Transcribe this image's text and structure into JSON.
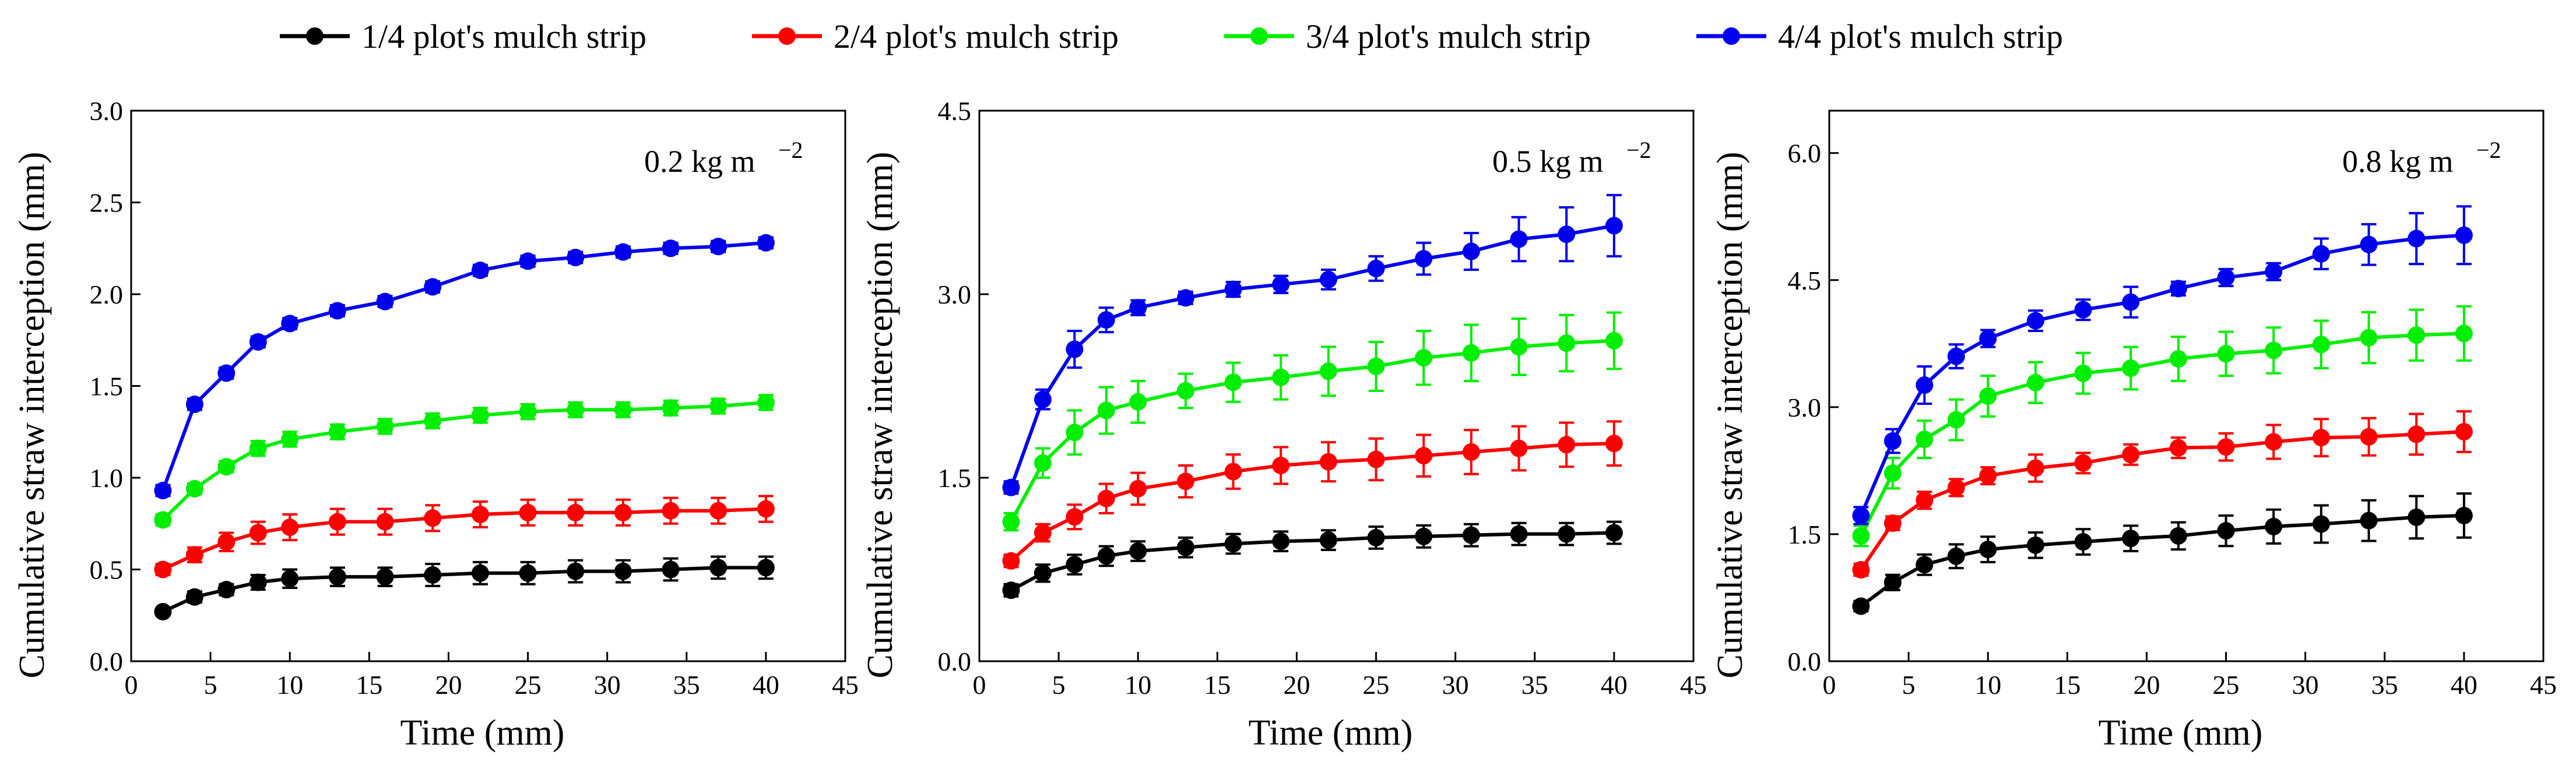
{
  "chart_data": {
    "type": "line",
    "legend": [
      {
        "label": "1/4 plot's mulch strip",
        "color": "#000000"
      },
      {
        "label": "2/4 plot's mulch strip",
        "color": "#ff0000"
      },
      {
        "label": "3/4 plot's mulch strip",
        "color": "#00ee00"
      },
      {
        "label": "4/4 plot's mulch strip",
        "color": "#0000ee"
      }
    ],
    "legend_position": "top-center",
    "x": [
      2,
      4,
      6,
      8,
      10,
      13,
      16,
      19,
      22,
      25,
      28,
      31,
      34,
      37,
      40
    ],
    "panels": [
      {
        "annotation": {
          "text": "0.2 kg m",
          "sup": "−2"
        },
        "xlabel": "Time (mm)",
        "ylabel": "Cumulative straw interception (mm)",
        "xlim": [
          0,
          45
        ],
        "ylim": [
          0,
          3.0
        ],
        "xticks": [
          "0",
          "5",
          "10",
          "15",
          "20",
          "25",
          "30",
          "35",
          "40",
          "45"
        ],
        "yticks": [
          "0.0",
          "0.5",
          "1.0",
          "1.5",
          "2.0",
          "2.5",
          "3.0"
        ],
        "series": [
          {
            "name": "1/4 plot's mulch strip",
            "values": [
              0.27,
              0.35,
              0.39,
              0.43,
              0.45,
              0.46,
              0.46,
              0.47,
              0.48,
              0.48,
              0.49,
              0.49,
              0.5,
              0.51,
              0.51
            ],
            "errors": [
              0.02,
              0.03,
              0.03,
              0.04,
              0.05,
              0.05,
              0.05,
              0.06,
              0.06,
              0.06,
              0.06,
              0.06,
              0.06,
              0.06,
              0.06
            ]
          },
          {
            "name": "2/4 plot's mulch strip",
            "values": [
              0.5,
              0.58,
              0.65,
              0.7,
              0.73,
              0.76,
              0.76,
              0.78,
              0.8,
              0.81,
              0.81,
              0.81,
              0.82,
              0.82,
              0.83
            ],
            "errors": [
              0.03,
              0.04,
              0.05,
              0.06,
              0.07,
              0.07,
              0.07,
              0.07,
              0.07,
              0.07,
              0.07,
              0.07,
              0.07,
              0.07,
              0.07
            ]
          },
          {
            "name": "3/4 plot's mulch strip",
            "values": [
              0.77,
              0.94,
              1.06,
              1.16,
              1.21,
              1.25,
              1.28,
              1.31,
              1.34,
              1.36,
              1.37,
              1.37,
              1.38,
              1.39,
              1.41
            ],
            "errors": [
              0.03,
              0.03,
              0.03,
              0.04,
              0.04,
              0.04,
              0.04,
              0.04,
              0.04,
              0.04,
              0.04,
              0.04,
              0.04,
              0.04,
              0.04
            ]
          },
          {
            "name": "4/4 plot's mulch strip",
            "values": [
              0.93,
              1.4,
              1.57,
              1.74,
              1.84,
              1.91,
              1.96,
              2.04,
              2.13,
              2.18,
              2.2,
              2.23,
              2.25,
              2.26,
              2.28
            ],
            "errors": [
              0.03,
              0.03,
              0.03,
              0.03,
              0.03,
              0.03,
              0.03,
              0.03,
              0.03,
              0.03,
              0.03,
              0.03,
              0.03,
              0.03,
              0.03
            ]
          }
        ]
      },
      {
        "annotation": {
          "text": "0.5 kg m",
          "sup": "−2"
        },
        "xlabel": "Time (mm)",
        "ylabel": "Cumulative straw interception (mm)",
        "xlim": [
          0,
          45
        ],
        "ylim": [
          0,
          4.5
        ],
        "xticks": [
          "0",
          "5",
          "10",
          "15",
          "20",
          "25",
          "30",
          "35",
          "40",
          "45"
        ],
        "yticks": [
          "0.0",
          "1.5",
          "3.0",
          "4.5"
        ],
        "series": [
          {
            "name": "1/4 plot's mulch strip",
            "values": [
              0.58,
              0.72,
              0.79,
              0.86,
              0.9,
              0.93,
              0.96,
              0.98,
              0.99,
              1.01,
              1.02,
              1.03,
              1.04,
              1.04,
              1.05
            ],
            "errors": [
              0.05,
              0.07,
              0.08,
              0.08,
              0.08,
              0.08,
              0.08,
              0.08,
              0.08,
              0.09,
              0.09,
              0.09,
              0.09,
              0.09,
              0.09
            ]
          },
          {
            "name": "2/4 plot's mulch strip",
            "values": [
              0.82,
              1.05,
              1.18,
              1.33,
              1.41,
              1.47,
              1.55,
              1.6,
              1.63,
              1.65,
              1.68,
              1.71,
              1.74,
              1.77,
              1.78
            ],
            "errors": [
              0.05,
              0.07,
              0.1,
              0.12,
              0.13,
              0.13,
              0.14,
              0.15,
              0.16,
              0.17,
              0.17,
              0.18,
              0.18,
              0.18,
              0.18
            ]
          },
          {
            "name": "3/4 plot's mulch strip",
            "values": [
              1.14,
              1.62,
              1.87,
              2.05,
              2.12,
              2.21,
              2.28,
              2.32,
              2.37,
              2.41,
              2.48,
              2.52,
              2.57,
              2.6,
              2.62
            ],
            "errors": [
              0.07,
              0.12,
              0.18,
              0.19,
              0.17,
              0.14,
              0.16,
              0.18,
              0.2,
              0.2,
              0.22,
              0.23,
              0.23,
              0.23,
              0.23
            ]
          },
          {
            "name": "4/4 plot's mulch strip",
            "values": [
              1.42,
              2.14,
              2.55,
              2.79,
              2.89,
              2.97,
              3.04,
              3.08,
              3.12,
              3.21,
              3.29,
              3.35,
              3.45,
              3.49,
              3.56
            ],
            "errors": [
              0.05,
              0.08,
              0.15,
              0.1,
              0.06,
              0.05,
              0.06,
              0.07,
              0.08,
              0.1,
              0.13,
              0.15,
              0.18,
              0.22,
              0.25
            ]
          }
        ]
      },
      {
        "annotation": {
          "text": "0.8 kg m",
          "sup": "−2"
        },
        "xlabel": "Time (mm)",
        "ylabel": "Cumulative straw interception (mm)",
        "xlim": [
          0,
          45
        ],
        "ylim": [
          0,
          6.5
        ],
        "xticks": [
          "0",
          "5",
          "10",
          "15",
          "20",
          "25",
          "30",
          "35",
          "40",
          "45"
        ],
        "yticks": [
          "0.0",
          "1.5",
          "3.0",
          "4.5",
          "6.0"
        ],
        "series": [
          {
            "name": "1/4 plot's mulch strip",
            "values": [
              0.65,
              0.93,
              1.14,
              1.24,
              1.32,
              1.37,
              1.41,
              1.45,
              1.48,
              1.54,
              1.59,
              1.62,
              1.66,
              1.7,
              1.72
            ],
            "errors": [
              0.06,
              0.09,
              0.12,
              0.14,
              0.15,
              0.15,
              0.15,
              0.15,
              0.16,
              0.18,
              0.2,
              0.22,
              0.24,
              0.25,
              0.26
            ]
          },
          {
            "name": "2/4 plot's mulch strip",
            "values": [
              1.08,
              1.63,
              1.9,
              2.05,
              2.19,
              2.28,
              2.34,
              2.44,
              2.52,
              2.53,
              2.59,
              2.64,
              2.65,
              2.68,
              2.71
            ],
            "errors": [
              0.07,
              0.08,
              0.1,
              0.1,
              0.1,
              0.16,
              0.12,
              0.12,
              0.12,
              0.16,
              0.2,
              0.22,
              0.22,
              0.24,
              0.24
            ]
          },
          {
            "name": "3/4 plot's mulch strip",
            "values": [
              1.48,
              2.22,
              2.62,
              2.85,
              3.13,
              3.29,
              3.4,
              3.46,
              3.57,
              3.63,
              3.67,
              3.74,
              3.82,
              3.85,
              3.87
            ],
            "errors": [
              0.12,
              0.18,
              0.22,
              0.24,
              0.24,
              0.24,
              0.24,
              0.25,
              0.26,
              0.26,
              0.27,
              0.28,
              0.3,
              0.3,
              0.32
            ]
          },
          {
            "name": "4/4 plot's mulch strip",
            "values": [
              1.72,
              2.6,
              3.26,
              3.6,
              3.81,
              4.02,
              4.15,
              4.24,
              4.4,
              4.53,
              4.6,
              4.81,
              4.92,
              4.99,
              5.03
            ],
            "errors": [
              0.1,
              0.14,
              0.22,
              0.14,
              0.1,
              0.12,
              0.12,
              0.18,
              0.08,
              0.1,
              0.1,
              0.18,
              0.24,
              0.3,
              0.34
            ]
          }
        ]
      }
    ]
  }
}
